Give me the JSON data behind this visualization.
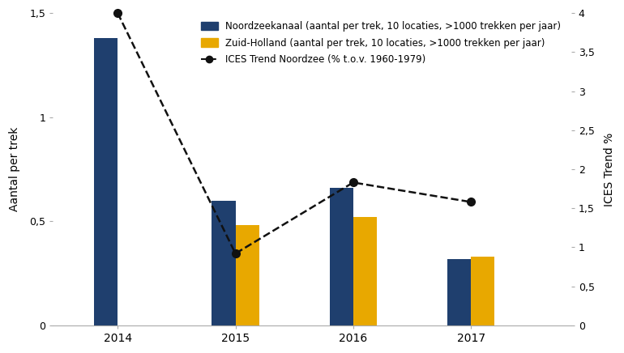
{
  "years": [
    2014,
    2015,
    2016,
    2017
  ],
  "noordzeekanaal": [
    1.38,
    0.6,
    0.66,
    0.32
  ],
  "zuidholland": [
    null,
    0.48,
    0.52,
    0.33
  ],
  "ices_trend": [
    4.0,
    0.92,
    1.83,
    1.58
  ],
  "bar_color_noord": "#1f3f6e",
  "bar_color_zh": "#e8a800",
  "line_color": "#111111",
  "ylim_left": [
    0,
    1.5
  ],
  "ylim_right": [
    0,
    4.0
  ],
  "yticks_left": [
    0,
    0.5,
    1.0,
    1.5
  ],
  "ytick_labels_left": [
    "0",
    "0,5",
    "1",
    "1,5"
  ],
  "yticks_right": [
    0,
    0.5,
    1.0,
    1.5,
    2.0,
    2.5,
    3.0,
    3.5,
    4.0
  ],
  "ytick_labels_right": [
    "0",
    "0,5",
    "1",
    "1,5",
    "2",
    "2,5",
    "3",
    "3,5",
    "4"
  ],
  "ylabel_left": "Aantal per trek",
  "ylabel_right": "ICES Trend %",
  "legend_noord": "Noordzeekanaal (aantal per trek, 10 locaties, >1000 trekken per jaar)",
  "legend_zh": "Zuid-Holland (aantal per trek, 10 locaties, >1000 trekken per jaar)",
  "legend_ices": "ICES Trend Noordzee (% t.o.v. 1960-1979)",
  "bar_width": 0.2,
  "figure_bg": "#ffffff",
  "axes_bg": "#ffffff"
}
